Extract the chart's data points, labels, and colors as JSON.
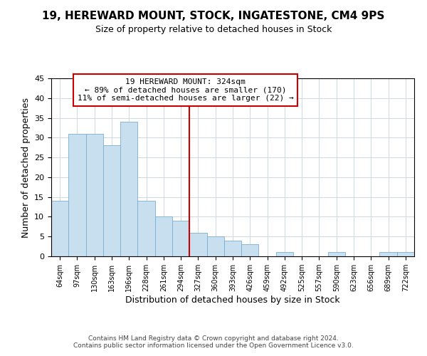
{
  "title": "19, HEREWARD MOUNT, STOCK, INGATESTONE, CM4 9PS",
  "subtitle": "Size of property relative to detached houses in Stock",
  "xlabel": "Distribution of detached houses by size in Stock",
  "ylabel": "Number of detached properties",
  "bar_labels": [
    "64sqm",
    "97sqm",
    "130sqm",
    "163sqm",
    "196sqm",
    "228sqm",
    "261sqm",
    "294sqm",
    "327sqm",
    "360sqm",
    "393sqm",
    "426sqm",
    "459sqm",
    "492sqm",
    "525sqm",
    "557sqm",
    "590sqm",
    "623sqm",
    "656sqm",
    "689sqm",
    "722sqm"
  ],
  "bar_heights": [
    14,
    31,
    31,
    28,
    34,
    14,
    10,
    9,
    6,
    5,
    4,
    3,
    0,
    1,
    0,
    0,
    1,
    0,
    0,
    1,
    1
  ],
  "bar_color": "#c8dff0",
  "bar_edge_color": "#7aaed0",
  "vline_index": 8,
  "vline_color": "#cc0000",
  "annotation_title": "19 HEREWARD MOUNT: 324sqm",
  "annotation_line1": "← 89% of detached houses are smaller (170)",
  "annotation_line2": "11% of semi-detached houses are larger (22) →",
  "annotation_box_color": "#ffffff",
  "annotation_box_edge": "#cc0000",
  "ylim": [
    0,
    45
  ],
  "yticks": [
    0,
    5,
    10,
    15,
    20,
    25,
    30,
    35,
    40,
    45
  ],
  "footnote1": "Contains HM Land Registry data © Crown copyright and database right 2024.",
  "footnote2": "Contains public sector information licensed under the Open Government Licence v3.0."
}
